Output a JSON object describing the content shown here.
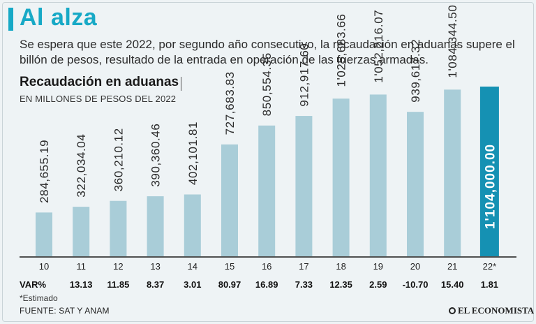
{
  "header": {
    "title": "Al alza",
    "subtitle": "Se espera que este 2022, por segundo año consecutivo, la recaudación en aduanas supere el billón de pesos, resultado de la entrada en operación de las fuerzas armadas."
  },
  "chart_data": {
    "type": "bar",
    "title": "Recaudación en aduanas",
    "subtitle": "EN MILLONES DE PESOS DEL 2022",
    "categories": [
      "10",
      "11",
      "12",
      "13",
      "14",
      "15",
      "16",
      "17",
      "18",
      "19",
      "20",
      "21",
      "22*"
    ],
    "values": [
      284655.19,
      322034.04,
      360210.12,
      390360.46,
      402101.81,
      727683.83,
      850554.35,
      912917.6,
      1025683.66,
      1052216.07,
      939617.32,
      1084344.5,
      1104000.0
    ],
    "value_labels": [
      "284,655.19",
      "322,034.04",
      "360,210.12",
      "390,360.46",
      "402,101.81",
      "727,683.83",
      "850,554.35",
      "912,917.60",
      "1'025,683.66",
      "1'052,216.07",
      "939,617.32",
      "1'084,344.50",
      "1'104,000.00"
    ],
    "var_label": "VAR%",
    "var_values": [
      "",
      "13.13",
      "11.85",
      "8.37",
      "3.01",
      "80.97",
      "16.89",
      "7.33",
      "12.35",
      "2.59",
      "-10.70",
      "15.40",
      "1.81"
    ],
    "ylim": [
      0,
      1104000
    ],
    "highlight_index": 12,
    "colors": {
      "bar": "#a9cdd8",
      "highlight": "#1591b3",
      "label": "#2a2a2a",
      "highlight_label": "#ffffff",
      "axis": "#1a1a1a"
    }
  },
  "footer": {
    "note": "*Estimado",
    "source": "FUENTE: SAT Y ANAM",
    "logo": "EL ECONOMISTA"
  }
}
